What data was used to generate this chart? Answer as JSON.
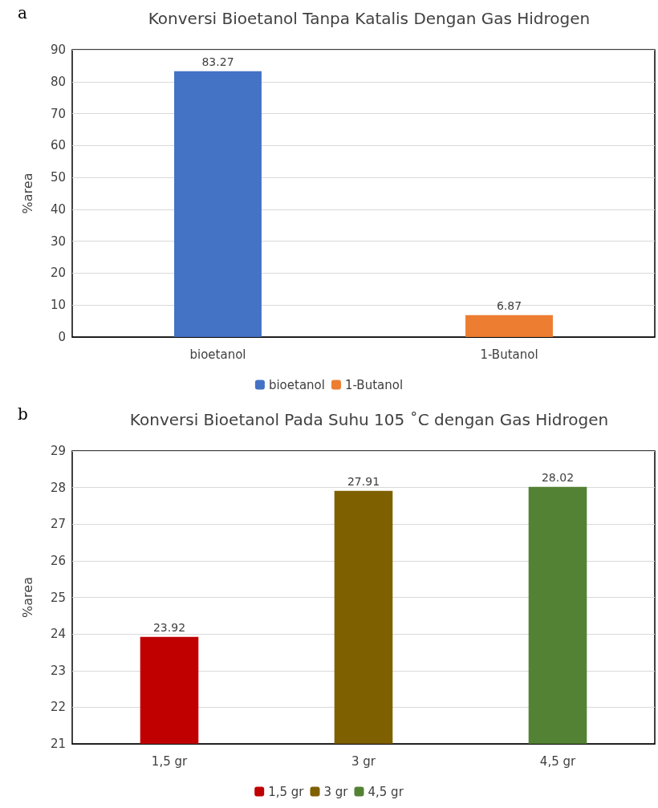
{
  "chart_data": [
    {
      "type": "bar",
      "title": "Konversi Bioetanol Tanpa Katalis Dengan Gas Hidrogen",
      "ylabel": "%area",
      "annotations": [
        "a"
      ],
      "categories": [
        "bioetanol",
        "1-Butanol"
      ],
      "series": [
        {
          "name": "bioetanol",
          "color": "#4472c4",
          "values": [
            83.27,
            null
          ]
        },
        {
          "name": "1-Butanol",
          "color": "#ed7d31",
          "values": [
            null,
            6.87
          ]
        }
      ],
      "stacked": true,
      "ylim": [
        0,
        90
      ],
      "yticks": [
        0,
        10,
        20,
        30,
        40,
        50,
        60,
        70,
        80,
        90
      ],
      "grid": "y",
      "legend": "bottom",
      "data_labels": true
    },
    {
      "type": "bar",
      "title": "Konversi Bioetanol Pada Suhu 105 ˚C dengan Gas Hidrogen",
      "ylabel": "%area",
      "annotations": [
        "b"
      ],
      "categories": [
        "1,5 gr",
        "3 gr",
        "4,5 gr"
      ],
      "series": [
        {
          "name": "1,5 gr",
          "color": "#c00000",
          "values": [
            23.92,
            null,
            null
          ]
        },
        {
          "name": "3 gr",
          "color": "#7f6000",
          "values": [
            null,
            27.91,
            null
          ]
        },
        {
          "name": "4,5 gr",
          "color": "#548235",
          "values": [
            null,
            null,
            28.02
          ]
        }
      ],
      "stacked": true,
      "ylim": [
        21,
        29
      ],
      "yticks": [
        21,
        22,
        23,
        24,
        25,
        26,
        27,
        28,
        29
      ],
      "grid": "y",
      "legend": "bottom",
      "data_labels": true
    }
  ]
}
